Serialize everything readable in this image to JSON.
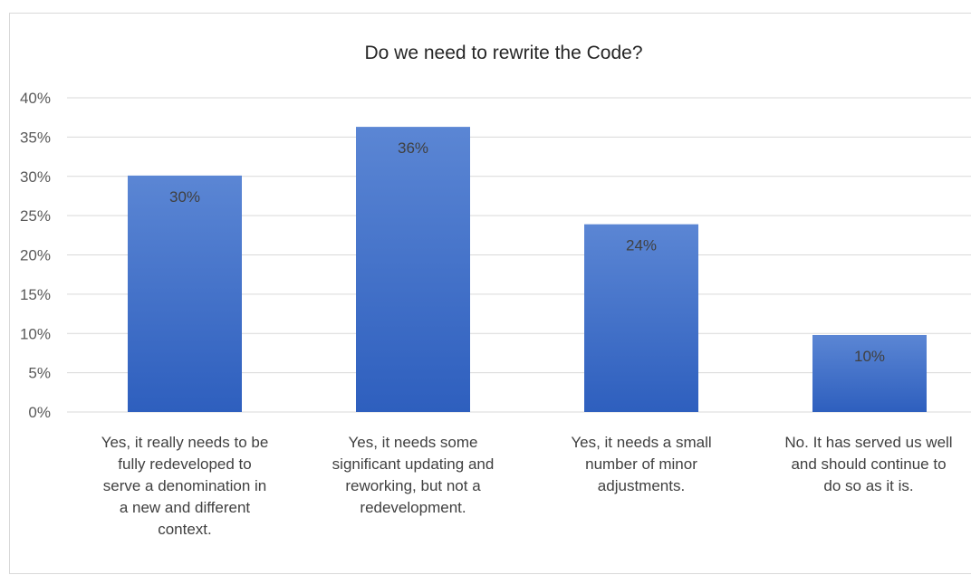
{
  "chart_data": {
    "type": "bar",
    "title": "Do we need to rewrite the Code?",
    "categories": [
      [
        "Yes, it really needs to be",
        "fully redeveloped to",
        "serve a denomination in",
        "a new and different",
        "context."
      ],
      [
        "Yes, it needs some",
        "significant updating and",
        "reworking, but not a",
        "redevelopment."
      ],
      [
        "Yes, it needs a small",
        "number of minor",
        "adjustments."
      ],
      [
        "No. It has served us well",
        "and should continue to",
        "do so as it is."
      ]
    ],
    "values": [
      30.1,
      36.3,
      23.9,
      9.8
    ],
    "data_labels": [
      "30%",
      "36%",
      "24%",
      "10%"
    ],
    "y_ticks": [
      "0%",
      "5%",
      "10%",
      "15%",
      "20%",
      "25%",
      "30%",
      "35%",
      "40%"
    ],
    "ylim": [
      0,
      40
    ],
    "xlabel": "",
    "ylabel": "",
    "grid": true,
    "legend": "none",
    "colors": {
      "bar_top": "#5b86d4",
      "bar_bottom": "#2e5fbe",
      "grid": "#d9d9d9"
    }
  }
}
